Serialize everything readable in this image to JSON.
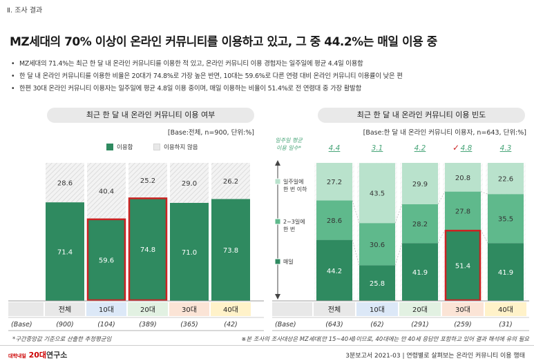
{
  "section_label": "Ⅱ. 조사 결과",
  "headline": "MZ세대의 70% 이상이 온라인 커뮤니티를 이용하고 있고, 그 중 44.2%는 매일 이용 중",
  "bullets": [
    "MZ세대의 71.4%는 최근 한 달 내 온라인 커뮤니티를 이용한 적 있고, 온라인 커뮤니티 이용 경험자는 일주일에 평균 4.4일 이용함",
    "한 달 내 온라인 커뮤니티를 이용한 비율은 20대가 74.8%로 가장 높은 반면, 10대는 59.6%로 다른 연령 대비 온라인 커뮤니티 이용률이 낮은 편",
    "한편 30대 온라인 커뮤니티 이용자는 일주일에 평균 4.8일 이용 중이며, 매일 이용하는 비율이 51.4%로 전 연령대 중 가장 활발함"
  ],
  "left_panel": {
    "title": "최근 한 달 내 온라인 커뮤니티 이용 여부",
    "base_note": "[Base:전체, n=900, 단위:%]"
  },
  "right_panel": {
    "title": "최근 한 달 내 온라인 커뮤니티 이용 빈도",
    "base_note": "[Base:한 달 내 온라인 커뮤니티 이용자, n=643, 단위:%]"
  },
  "avg_label": "일주일 평균 이용 일수*",
  "check_mark": "✓",
  "base_row_label": "(Base)",
  "footnote_left": "*구간중앙값 기준으로 산출한 추정평균임",
  "footnote_right": "※본 조사의 조사대상은 MZ세대(만 15~40세)이므로, 40대에는 만 40세 응답만 포함하고 있어 결과 해석에 유의 필요",
  "footer": {
    "logo_brand": "대학내일",
    "logo_main": "20대",
    "logo_suffix": "연구소",
    "report": "3분보고서 2021-03 | 연령별로 살펴보는 온라인 커뮤니티 이용 행태"
  },
  "colors": {
    "dark_green": "#2f8a60",
    "mid_green": "#5fb98c",
    "light_green": "#b9e2cc",
    "hatch": "#e6e6e6",
    "highlight": "#cc2222"
  },
  "chart_data": [
    {
      "type": "bar",
      "stacked": true,
      "title": "최근 한 달 내 온라인 커뮤니티 이용 여부",
      "categories": [
        "전체",
        "10대",
        "20대",
        "30대",
        "40대"
      ],
      "base": [
        "(900)",
        "(104)",
        "(389)",
        "(365)",
        "(42)"
      ],
      "category_colors": [
        "#e8e8e8",
        "#dce8f7",
        "#e2f1e2",
        "#fbe4d6",
        "#fff2c9"
      ],
      "series": [
        {
          "name": "이용함",
          "values": [
            71.4,
            59.6,
            74.8,
            71.0,
            73.8
          ]
        },
        {
          "name": "이용하지 않음",
          "values": [
            28.6,
            40.4,
            25.2,
            29.0,
            26.2
          ]
        }
      ],
      "highlight": [
        "10대",
        "20대"
      ],
      "ylim": [
        0,
        100
      ]
    },
    {
      "type": "bar",
      "stacked": true,
      "title": "최근 한 달 내 온라인 커뮤니티 이용 빈도",
      "categories": [
        "전체",
        "10대",
        "20대",
        "30대",
        "40대"
      ],
      "base": [
        "(643)",
        "(62)",
        "(291)",
        "(259)",
        "(31)"
      ],
      "category_colors": [
        "#e8e8e8",
        "#dce8f7",
        "#e2f1e2",
        "#fbe4d6",
        "#fff2c9"
      ],
      "avg_days": [
        "4.4",
        "3.1",
        "4.2",
        "4.8",
        "4.3"
      ],
      "series": [
        {
          "name": "매일",
          "values": [
            44.2,
            25.8,
            41.9,
            51.4,
            41.9
          ]
        },
        {
          "name": "2~3일에 한 번",
          "values": [
            28.6,
            30.6,
            28.2,
            27.8,
            35.5
          ]
        },
        {
          "name": "일주일에 한 번 이하",
          "values": [
            27.2,
            43.5,
            29.9,
            20.8,
            22.6
          ]
        }
      ],
      "highlight": [
        "30대"
      ],
      "ylim": [
        0,
        100
      ]
    }
  ]
}
